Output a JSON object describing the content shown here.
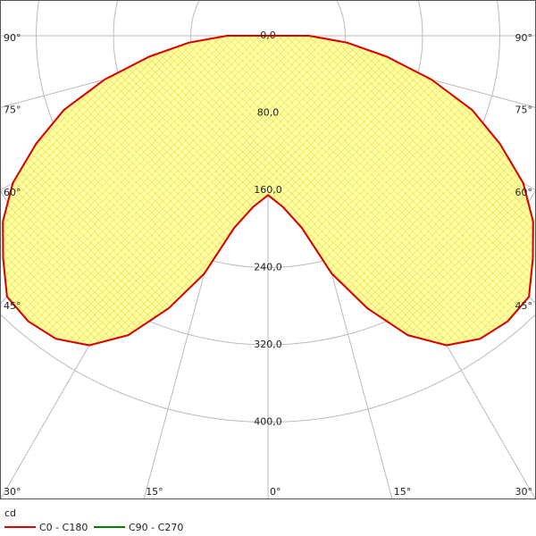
{
  "chart_data": {
    "type": "polar",
    "unit": "cd",
    "angles": [
      0,
      5,
      10,
      15,
      20,
      25,
      30,
      35,
      40,
      45,
      50,
      55,
      60,
      65,
      70,
      75,
      80,
      85,
      90
    ],
    "series": [
      {
        "name": "C90 - C270",
        "color": "#008000",
        "values": [
          165,
          178,
          202,
          255,
          300,
          342,
          370,
          383,
          386,
          382,
          358,
          335,
          305,
          265,
          225,
          175,
          125,
          82,
          42
        ]
      },
      {
        "name": "C0 - C180",
        "color": "#e00000",
        "values": [
          165,
          178,
          202,
          255,
          300,
          342,
          370,
          383,
          386,
          382,
          358,
          335,
          305,
          265,
          225,
          175,
          125,
          82,
          42
        ]
      }
    ],
    "rlim": [
      0,
      400
    ],
    "rticks": [
      {
        "value": 0,
        "label": "0,0"
      },
      {
        "value": 80,
        "label": "80,0"
      },
      {
        "value": 160,
        "label": "160,0"
      },
      {
        "value": 240,
        "label": "240,0"
      },
      {
        "value": 320,
        "label": "320,0"
      },
      {
        "value": 400,
        "label": "400,0"
      }
    ],
    "angle_ticks": [
      {
        "value": 0,
        "label": "0°"
      },
      {
        "value": 15,
        "label": "15°"
      },
      {
        "value": 30,
        "label": "30°"
      },
      {
        "value": 45,
        "label": "45°"
      },
      {
        "value": 60,
        "label": "60°"
      },
      {
        "value": 75,
        "label": "75°"
      },
      {
        "value": 90,
        "label": "90°"
      }
    ]
  }
}
